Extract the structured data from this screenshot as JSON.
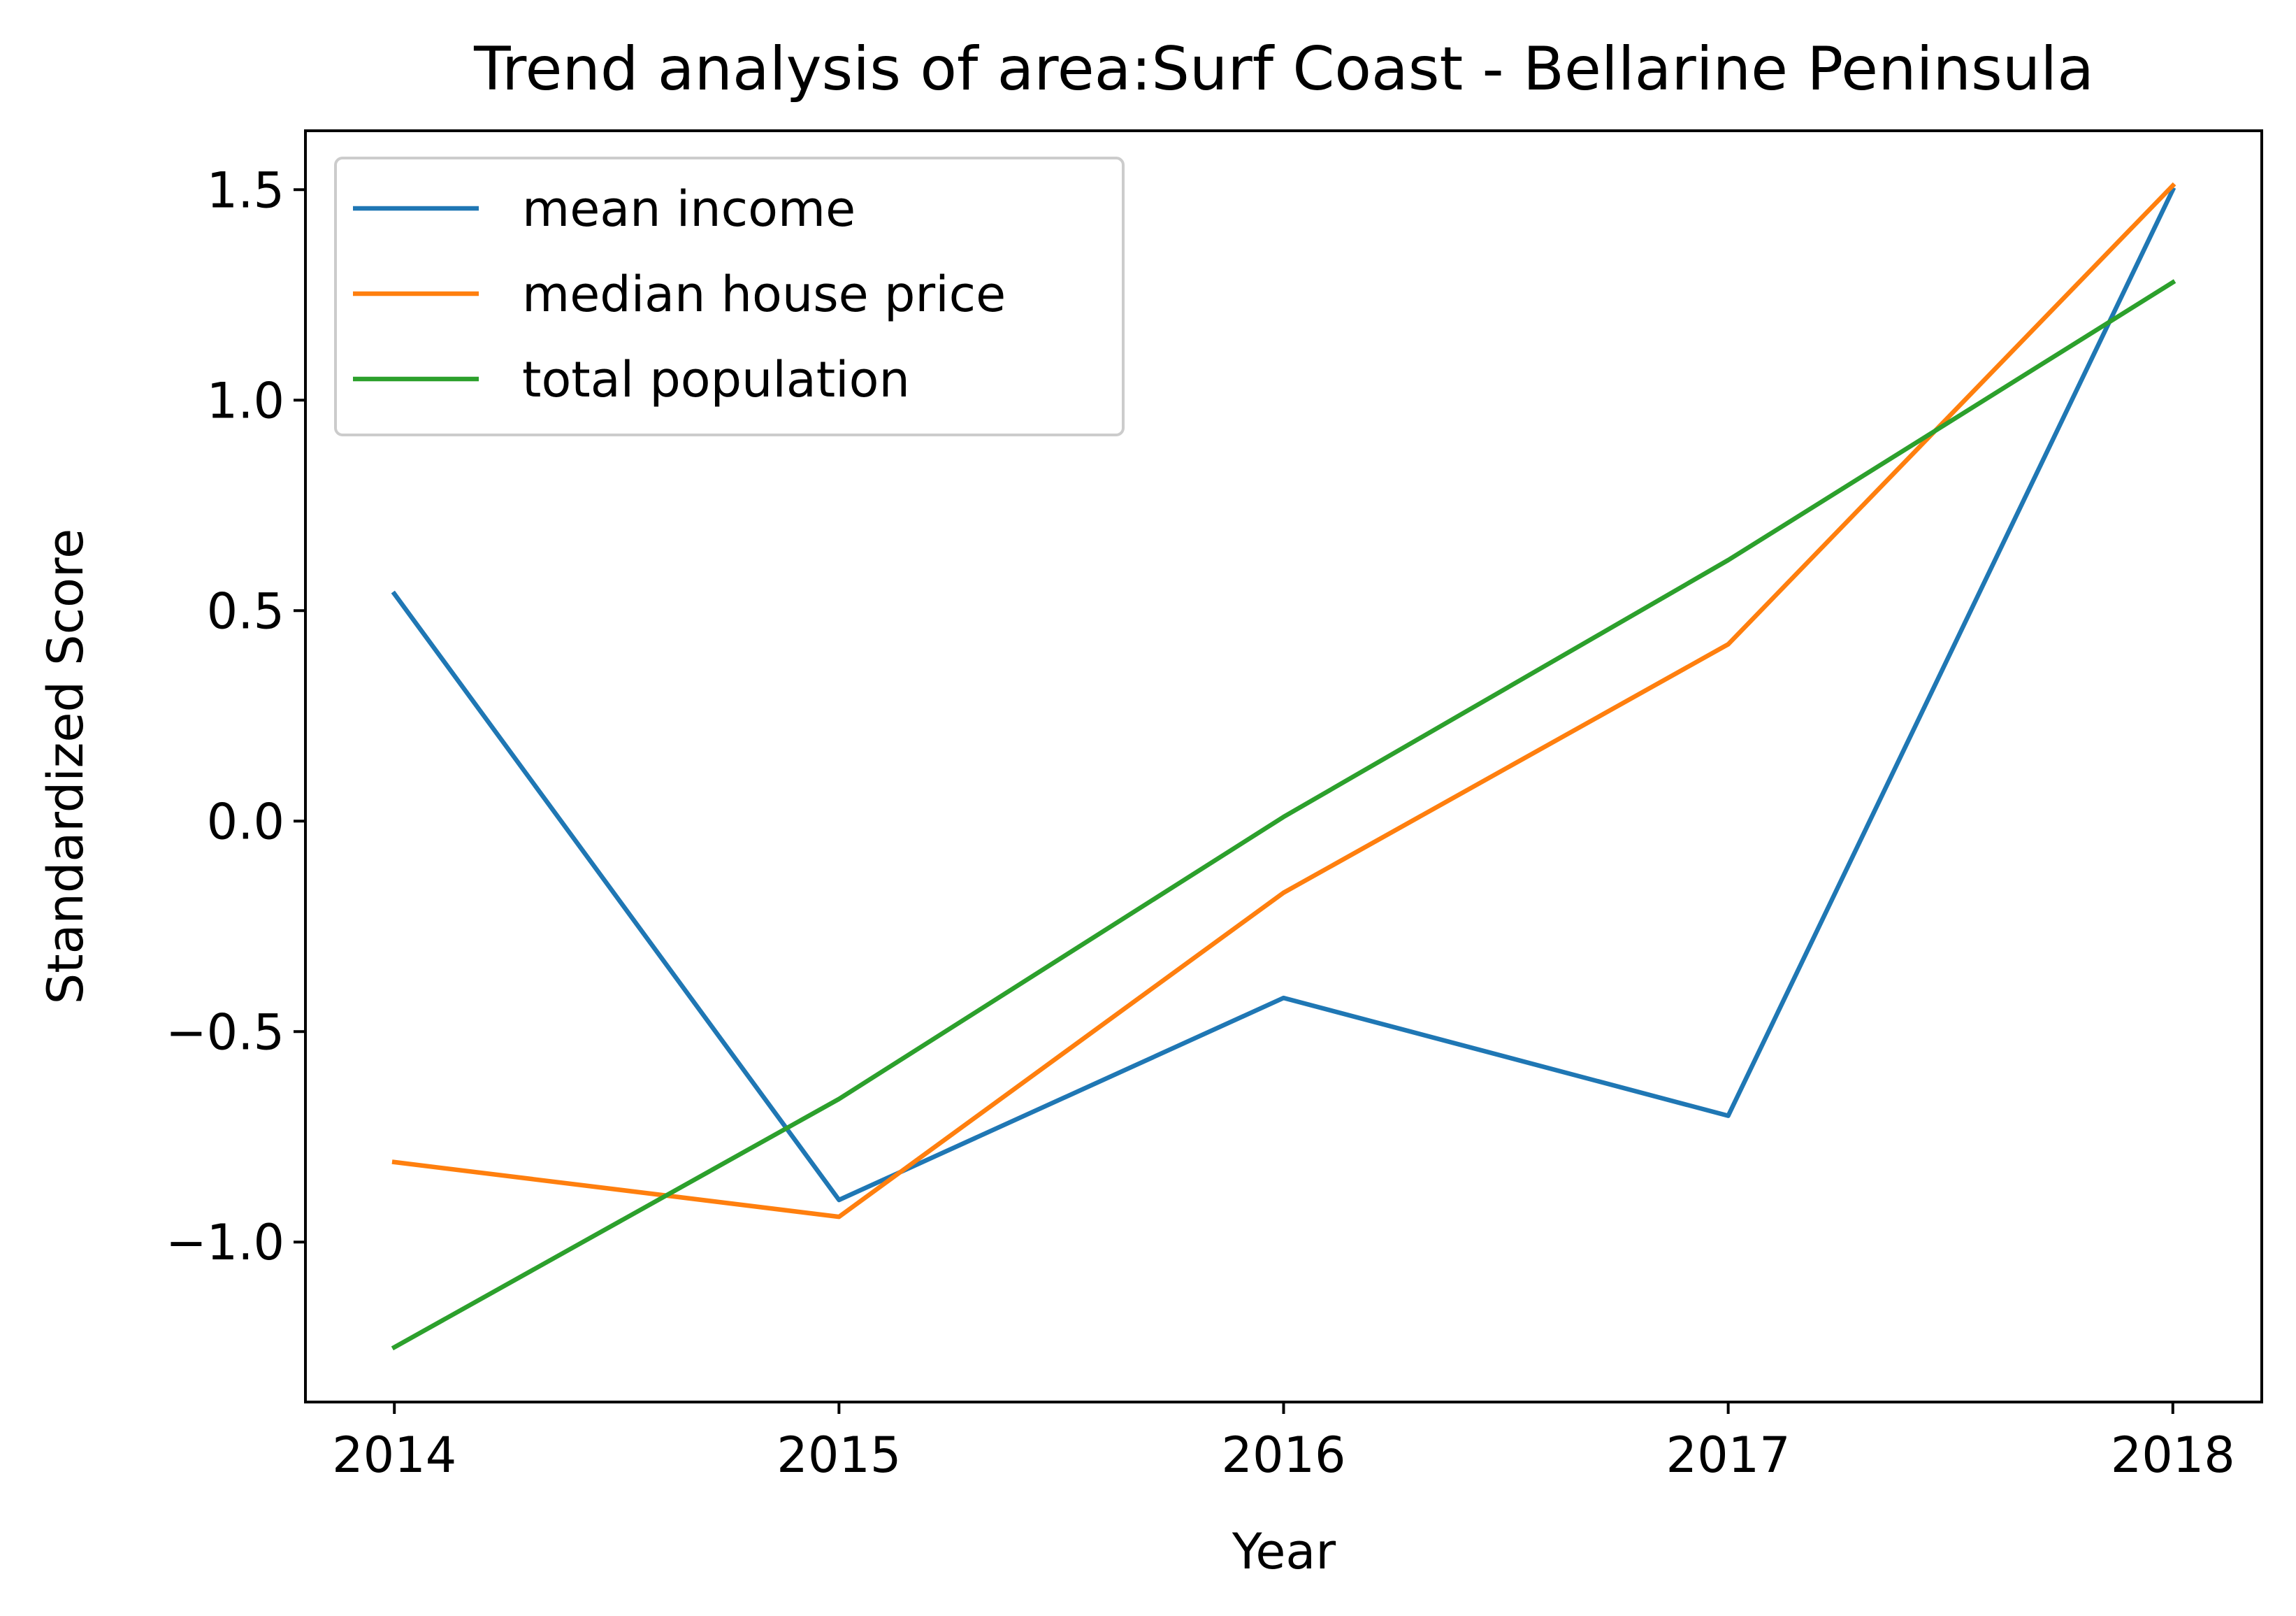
{
  "chart_data": {
    "type": "line",
    "title": "Trend analysis of area:Surf Coast - Bellarine Peninsula",
    "xlabel": "Year",
    "ylabel": "Standardized Score",
    "x": [
      2014,
      2015,
      2016,
      2017,
      2018
    ],
    "x_tick_labels": [
      "2014",
      "2015",
      "2016",
      "2017",
      "2018"
    ],
    "y_ticks": [
      -1.0,
      -0.5,
      0.0,
      0.5,
      1.0,
      1.5
    ],
    "y_tick_labels": [
      "−1.0",
      "−0.5",
      "0.0",
      "0.5",
      "1.0",
      "1.5"
    ],
    "xlim": [
      2013.8,
      2018.2
    ],
    "ylim": [
      -1.38,
      1.64
    ],
    "grid": false,
    "legend_position": "top-left",
    "series": [
      {
        "name": "mean income",
        "color": "#1f77b4",
        "values": [
          0.54,
          -0.9,
          -0.42,
          -0.7,
          1.5
        ]
      },
      {
        "name": "median house price",
        "color": "#ff7f0e",
        "values": [
          -0.81,
          -0.94,
          -0.17,
          0.42,
          1.51
        ]
      },
      {
        "name": "total population",
        "color": "#2ca02c",
        "values": [
          -1.25,
          -0.66,
          0.01,
          0.62,
          1.28
        ]
      }
    ]
  }
}
